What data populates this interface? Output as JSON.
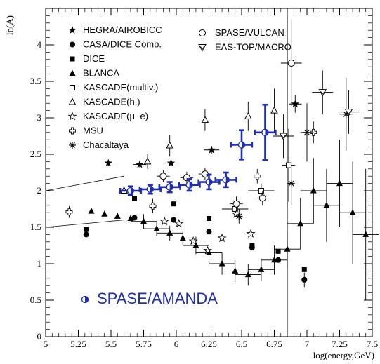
{
  "chart_data": {
    "type": "scatter",
    "title": "",
    "xlabel": "log(energy,GeV)",
    "ylabel": "ln(A)",
    "xlim": [
      5,
      7.5
    ],
    "ylim": [
      0,
      4.5
    ],
    "x_ticks": [
      "5",
      "5.25",
      "5.5",
      "5.75",
      "6",
      "6.25",
      "6.5",
      "6.75",
      "7",
      "7.25",
      "7.5"
    ],
    "y_ticks": [
      "0",
      "0.5",
      "1",
      "1.5",
      "2",
      "2.5",
      "3",
      "3.5",
      "4"
    ],
    "grid": false,
    "legend_position": "top",
    "colors": {
      "axes": "#000000",
      "amanda": "#1f2fb0"
    },
    "series": [
      {
        "name": "HEGRA/AIROBICC",
        "marker": "star-filled",
        "points": [
          [
            5.48,
            2.38,
            0.05,
            0.04
          ],
          [
            5.72,
            2.36,
            0.05,
            0.04
          ],
          [
            5.96,
            2.38,
            0.05,
            0.04
          ],
          [
            6.27,
            2.56,
            0.06,
            0.05
          ],
          [
            6.91,
            3.19,
            0.05,
            0.12
          ]
        ]
      },
      {
        "name": "CASA/DICE Comb.",
        "marker": "circle-filled",
        "points": [
          [
            5.31,
            1.4,
            0,
            0
          ],
          [
            5.68,
            1.63,
            0,
            0
          ],
          [
            5.98,
            1.6,
            0,
            0
          ],
          [
            6.25,
            1.44,
            0,
            0
          ],
          [
            6.58,
            1.22,
            0,
            0
          ],
          [
            6.78,
            1.05,
            0,
            0
          ],
          [
            6.98,
            0.78,
            0,
            0.1
          ]
        ]
      },
      {
        "name": "DICE",
        "marker": "square-filled",
        "points": [
          [
            5.31,
            1.47,
            0,
            0
          ],
          [
            5.68,
            1.89,
            0,
            0
          ],
          [
            5.98,
            1.82,
            0,
            0
          ],
          [
            6.25,
            1.62,
            0,
            0
          ],
          [
            6.58,
            1.25,
            0,
            0
          ],
          [
            6.78,
            1.17,
            0,
            0
          ],
          [
            6.98,
            0.92,
            0,
            0
          ]
        ]
      },
      {
        "name": "BLANCA",
        "marker": "triangle-filled",
        "points": [
          [
            5.35,
            1.72,
            0,
            0
          ],
          [
            5.45,
            1.68,
            0,
            0
          ],
          [
            5.55,
            1.65,
            0,
            0
          ],
          [
            5.65,
            1.62,
            0,
            0
          ],
          [
            5.75,
            1.58,
            0.1,
            0.1
          ],
          [
            5.85,
            1.48,
            0.1,
            0.1
          ],
          [
            5.95,
            1.42,
            0.1,
            0.1
          ],
          [
            6.05,
            1.35,
            0.1,
            0.1
          ],
          [
            6.15,
            1.25,
            0.1,
            0.12
          ],
          [
            6.25,
            1.15,
            0.1,
            0.12
          ],
          [
            6.35,
            1.0,
            0.1,
            0.15
          ],
          [
            6.45,
            0.9,
            0.1,
            0.15
          ],
          [
            6.55,
            0.85,
            0.1,
            0.15
          ],
          [
            6.65,
            0.92,
            0.1,
            0.15
          ],
          [
            6.75,
            1.05,
            0.1,
            0.2
          ],
          [
            6.85,
            1.2,
            0.1,
            0.25
          ],
          [
            6.95,
            1.55,
            0.1,
            0.35
          ],
          [
            7.05,
            2.0,
            0.1,
            0.45
          ],
          [
            7.15,
            1.8,
            0.1,
            0.5
          ],
          [
            7.25,
            2.1,
            0.1,
            0.6
          ],
          [
            7.35,
            1.7,
            0.1,
            0.7
          ],
          [
            7.45,
            1.4,
            0.1,
            0.9
          ]
        ]
      },
      {
        "name": "KASCADE(multiv.)",
        "marker": "square-open",
        "points": [
          [
            6.45,
            1.75,
            0.1,
            0.05
          ],
          [
            6.65,
            2.0,
            0.1,
            0.1
          ],
          [
            6.86,
            2.35,
            0.05,
            0.5
          ]
        ]
      },
      {
        "name": "KASCADE(h.)",
        "marker": "triangle-open",
        "points": [
          [
            5.6,
            2.0,
            0,
            0.05
          ],
          [
            5.78,
            2.4,
            0,
            0.1
          ],
          [
            5.95,
            2.62,
            0,
            0.15
          ],
          [
            6.22,
            2.97,
            0,
            0.15
          ],
          [
            6.55,
            3.02,
            0,
            0.2
          ],
          [
            6.75,
            3.1,
            0,
            0.3
          ]
        ]
      },
      {
        "name": "KASCADE(μ−e)",
        "marker": "star-open",
        "points": [
          [
            5.91,
            1.58,
            0,
            0
          ],
          [
            6.02,
            1.55,
            0,
            0
          ],
          [
            6.13,
            1.31,
            0,
            0
          ],
          [
            6.24,
            1.18,
            0,
            0
          ],
          [
            6.35,
            1.35,
            0,
            0
          ],
          [
            6.46,
            1.68,
            0,
            0
          ],
          [
            6.57,
            1.41,
            0,
            0
          ]
        ]
      },
      {
        "name": "MSU",
        "marker": "cross-open",
        "points": [
          [
            5.18,
            1.71,
            0,
            0.08
          ],
          [
            5.82,
            1.79,
            0,
            0.1
          ],
          [
            6.62,
            2.2,
            0,
            0.1
          ],
          [
            7.05,
            2.8,
            0,
            0.15
          ]
        ]
      },
      {
        "name": "Chacaltaya",
        "marker": "asterisk",
        "points": [
          [
            6.48,
            1.65,
            0,
            0.1
          ],
          [
            6.88,
            2.1,
            0,
            0.3
          ],
          [
            7.0,
            2.8,
            0.05,
            0.4
          ],
          [
            7.3,
            3.05,
            0.05,
            0.5
          ]
        ]
      },
      {
        "name": "SPASE/VULCAN",
        "marker": "circle-open",
        "points": [
          [
            5.9,
            2.2,
            0.05,
            0.08
          ],
          [
            6.08,
            2.18,
            0.05,
            0.08
          ],
          [
            6.22,
            2.23,
            0.05,
            0.08
          ],
          [
            6.46,
            1.82,
            0.05,
            0.1
          ],
          [
            6.66,
            1.9,
            0.05,
            0.1
          ],
          [
            6.88,
            3.75,
            0.08,
            0.6
          ]
        ]
      },
      {
        "name": "EAS-TOP/MACRO",
        "marker": "triangle-down-open",
        "points": [
          [
            6.82,
            2.75,
            0.08,
            0.3
          ],
          [
            7.12,
            3.35,
            0.08,
            0.3
          ],
          [
            7.32,
            3.08,
            0.08,
            0.3
          ]
        ]
      },
      {
        "name": "SPASE/AMANDA",
        "marker": "circle-half",
        "points": [
          [
            5.65,
            2.0,
            0.08,
            0.06
          ],
          [
            5.8,
            2.02,
            0.08,
            0.06
          ],
          [
            5.95,
            2.05,
            0.08,
            0.07
          ],
          [
            6.1,
            2.08,
            0.08,
            0.08
          ],
          [
            6.25,
            2.12,
            0.08,
            0.1
          ],
          [
            6.38,
            2.15,
            0.08,
            0.1
          ],
          [
            6.5,
            2.63,
            0.08,
            0.2
          ],
          [
            6.68,
            2.8,
            0.08,
            0.38
          ]
        ]
      }
    ],
    "legend_left": [
      {
        "label": "HEGRA/AIROBICC",
        "marker": "star-filled"
      },
      {
        "label": "CASA/DICE Comb.",
        "marker": "circle-filled"
      },
      {
        "label": "DICE",
        "marker": "square-filled"
      },
      {
        "label": "BLANCA",
        "marker": "triangle-filled"
      },
      {
        "label": "KASCADE(multiv.)",
        "marker": "square-open"
      },
      {
        "label": "KASCADE(h.)",
        "marker": "triangle-open"
      },
      {
        "label": "KASCADE(μ−e)",
        "marker": "star-open"
      },
      {
        "label": "MSU",
        "marker": "cross-open"
      },
      {
        "label": "Chacaltaya",
        "marker": "asterisk"
      }
    ],
    "legend_right": [
      {
        "label": "SPASE/VULCAN",
        "marker": "circle-open"
      },
      {
        "label": "EAS-TOP/MACRO",
        "marker": "triangle-down-open"
      }
    ],
    "amanda_label": "SPASE/AMANDA"
  }
}
